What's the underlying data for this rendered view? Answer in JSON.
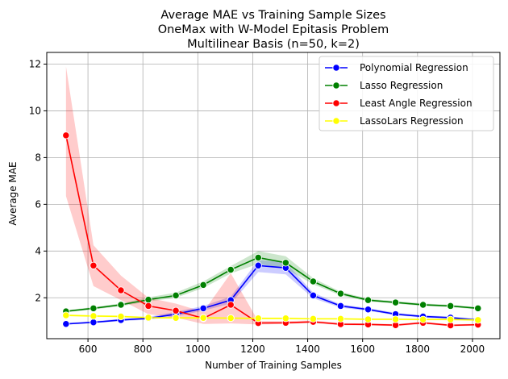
{
  "chart_data": {
    "type": "line",
    "title_lines": [
      "Average MAE vs Training Sample Sizes",
      "OneMax with W-Model Epitasis Problem",
      "Multilinear Basis (n=50, k=2)"
    ],
    "xlabel": "Number of Training Samples",
    "ylabel": "Average MAE",
    "xlim": [
      450,
      2100
    ],
    "ylim": [
      0.25,
      12.5
    ],
    "xticks": [
      600,
      800,
      1000,
      1200,
      1400,
      1600,
      1800,
      2000
    ],
    "yticks": [
      2,
      4,
      6,
      8,
      10,
      12
    ],
    "grid": true,
    "legend_position": "top-right",
    "x": [
      520,
      620,
      720,
      820,
      920,
      1020,
      1120,
      1220,
      1320,
      1420,
      1520,
      1620,
      1720,
      1820,
      1920,
      2020
    ],
    "series": [
      {
        "name": "Polynomial Regression",
        "color": "#0000ff",
        "values": [
          0.88,
          0.95,
          1.05,
          1.12,
          1.3,
          1.55,
          1.9,
          3.38,
          3.28,
          2.1,
          1.65,
          1.5,
          1.3,
          1.2,
          1.15,
          1.05
        ],
        "lower": [
          0.85,
          0.92,
          1.0,
          1.06,
          1.2,
          1.45,
          1.75,
          3.1,
          3.0,
          1.98,
          1.58,
          1.44,
          1.25,
          1.15,
          1.1,
          1.0
        ],
        "upper": [
          0.93,
          1.0,
          1.1,
          1.18,
          1.4,
          1.65,
          2.05,
          3.62,
          3.52,
          2.22,
          1.72,
          1.56,
          1.36,
          1.25,
          1.2,
          1.1
        ]
      },
      {
        "name": "Lasso Regression",
        "color": "#008000",
        "values": [
          1.42,
          1.55,
          1.7,
          1.92,
          2.1,
          2.55,
          3.2,
          3.72,
          3.5,
          2.7,
          2.18,
          1.9,
          1.8,
          1.7,
          1.65,
          1.55
        ],
        "lower": [
          1.38,
          1.5,
          1.64,
          1.84,
          2.0,
          2.42,
          3.04,
          3.45,
          3.25,
          2.58,
          2.1,
          1.84,
          1.75,
          1.65,
          1.6,
          1.5
        ],
        "upper": [
          1.47,
          1.6,
          1.76,
          2.02,
          2.22,
          2.7,
          3.36,
          4.0,
          3.78,
          2.84,
          2.26,
          1.96,
          1.86,
          1.76,
          1.7,
          1.6
        ]
      },
      {
        "name": "Least Angle Regression",
        "color": "#ff0000",
        "values": [
          8.95,
          3.38,
          2.32,
          1.65,
          1.45,
          1.12,
          1.7,
          0.92,
          0.93,
          0.97,
          0.87,
          0.86,
          0.83,
          0.93,
          0.82,
          0.85
        ],
        "lower": [
          6.35,
          2.5,
          1.9,
          1.3,
          1.15,
          0.88,
          0.9,
          0.86,
          0.88,
          0.92,
          0.83,
          0.82,
          0.79,
          0.88,
          0.78,
          0.81
        ],
        "upper": [
          11.9,
          4.25,
          2.95,
          2.0,
          1.75,
          1.4,
          3.05,
          1.0,
          1.0,
          1.03,
          0.92,
          0.9,
          0.87,
          0.98,
          0.86,
          0.89
        ]
      },
      {
        "name": "LassoLars Regression",
        "color": "#ffff00",
        "values": [
          1.25,
          1.22,
          1.2,
          1.15,
          1.14,
          1.14,
          1.13,
          1.12,
          1.12,
          1.1,
          1.1,
          1.08,
          1.08,
          1.07,
          1.07,
          1.05
        ],
        "lower": [
          1.2,
          1.18,
          1.16,
          1.11,
          1.1,
          1.1,
          1.09,
          1.08,
          1.08,
          1.06,
          1.06,
          1.04,
          1.04,
          1.03,
          1.03,
          1.01
        ],
        "upper": [
          1.3,
          1.26,
          1.24,
          1.19,
          1.18,
          1.18,
          1.17,
          1.16,
          1.16,
          1.14,
          1.14,
          1.12,
          1.12,
          1.11,
          1.11,
          1.09
        ]
      }
    ]
  }
}
